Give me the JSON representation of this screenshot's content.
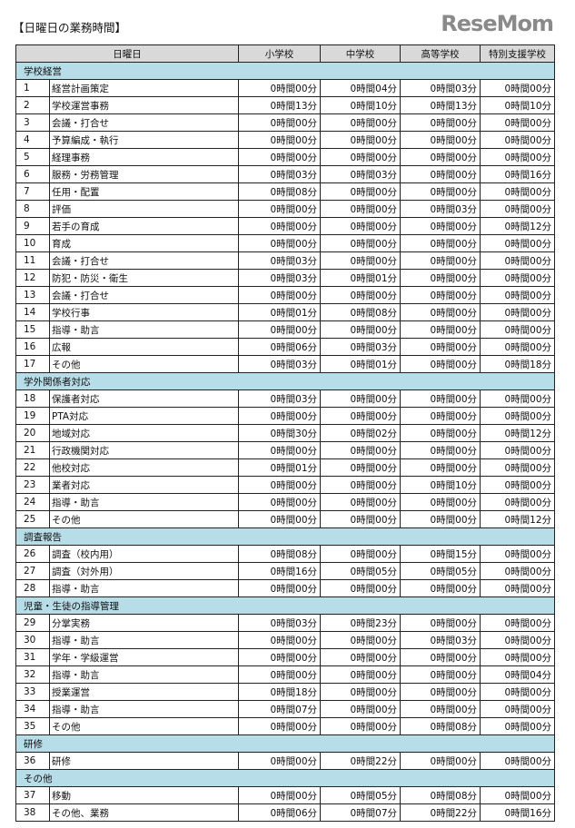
{
  "title": "【日曜日の業務時間】",
  "header": {
    "item": "日曜日",
    "columns": [
      "小学校",
      "中学校",
      "高等学校",
      "特別支援学校"
    ]
  },
  "sections": [
    {
      "name": "学校経営",
      "rows": [
        {
          "no": "1",
          "label": "経営計画策定",
          "values": [
            "0時間00分",
            "0時間04分",
            "0時間03分",
            "0時間00分"
          ]
        },
        {
          "no": "2",
          "label": "学校運営事務",
          "values": [
            "0時間13分",
            "0時間10分",
            "0時間13分",
            "0時間10分"
          ]
        },
        {
          "no": "3",
          "label": "会議・打合せ",
          "values": [
            "0時間00分",
            "0時間00分",
            "0時間00分",
            "0時間00分"
          ]
        },
        {
          "no": "4",
          "label": "予算編成・執行",
          "values": [
            "0時間00分",
            "0時間00分",
            "0時間00分",
            "0時間00分"
          ]
        },
        {
          "no": "5",
          "label": "経理事務",
          "values": [
            "0時間00分",
            "0時間00分",
            "0時間00分",
            "0時間00分"
          ]
        },
        {
          "no": "6",
          "label": "服務・労務管理",
          "values": [
            "0時間03分",
            "0時間03分",
            "0時間00分",
            "0時間16分"
          ]
        },
        {
          "no": "7",
          "label": "任用・配置",
          "values": [
            "0時間08分",
            "0時間00分",
            "0時間00分",
            "0時間00分"
          ]
        },
        {
          "no": "8",
          "label": "評価",
          "values": [
            "0時間00分",
            "0時間00分",
            "0時間03分",
            "0時間00分"
          ]
        },
        {
          "no": "9",
          "label": "若手の育成",
          "values": [
            "0時間00分",
            "0時間00分",
            "0時間00分",
            "0時間12分"
          ]
        },
        {
          "no": "10",
          "label": "育成",
          "values": [
            "0時間00分",
            "0時間00分",
            "0時間00分",
            "0時間00分"
          ]
        },
        {
          "no": "11",
          "label": "会議・打合せ",
          "values": [
            "0時間03分",
            "0時間00分",
            "0時間00分",
            "0時間00分"
          ]
        },
        {
          "no": "12",
          "label": "防犯・防災・衛生",
          "values": [
            "0時間03分",
            "0時間01分",
            "0時間00分",
            "0時間00分"
          ]
        },
        {
          "no": "13",
          "label": "会議・打合せ",
          "values": [
            "0時間00分",
            "0時間00分",
            "0時間00分",
            "0時間00分"
          ]
        },
        {
          "no": "14",
          "label": "学校行事",
          "values": [
            "0時間01分",
            "0時間08分",
            "0時間00分",
            "0時間00分"
          ]
        },
        {
          "no": "15",
          "label": "指導・助言",
          "values": [
            "0時間00分",
            "0時間00分",
            "0時間00分",
            "0時間00分"
          ]
        },
        {
          "no": "16",
          "label": "広報",
          "values": [
            "0時間06分",
            "0時間03分",
            "0時間00分",
            "0時間00分"
          ]
        },
        {
          "no": "17",
          "label": "その他",
          "values": [
            "0時間03分",
            "0時間01分",
            "0時間00分",
            "0時間18分"
          ]
        }
      ]
    },
    {
      "name": "学外関係者対応",
      "rows": [
        {
          "no": "18",
          "label": "保護者対応",
          "values": [
            "0時間03分",
            "0時間00分",
            "0時間00分",
            "0時間00分"
          ]
        },
        {
          "no": "19",
          "label": "PTA対応",
          "values": [
            "0時間00分",
            "0時間00分",
            "0時間00分",
            "0時間00分"
          ]
        },
        {
          "no": "20",
          "label": "地域対応",
          "values": [
            "0時間30分",
            "0時間02分",
            "0時間00分",
            "0時間12分"
          ]
        },
        {
          "no": "21",
          "label": "行政機関対応",
          "values": [
            "0時間00分",
            "0時間00分",
            "0時間00分",
            "0時間00分"
          ]
        },
        {
          "no": "22",
          "label": "他校対応",
          "values": [
            "0時間01分",
            "0時間00分",
            "0時間00分",
            "0時間00分"
          ]
        },
        {
          "no": "23",
          "label": "業者対応",
          "values": [
            "0時間00分",
            "0時間00分",
            "0時間10分",
            "0時間00分"
          ]
        },
        {
          "no": "24",
          "label": "指導・助言",
          "values": [
            "0時間00分",
            "0時間00分",
            "0時間00分",
            "0時間00分"
          ]
        },
        {
          "no": "25",
          "label": "その他",
          "values": [
            "0時間00分",
            "0時間00分",
            "0時間00分",
            "0時間12分"
          ]
        }
      ]
    },
    {
      "name": "調査報告",
      "rows": [
        {
          "no": "26",
          "label": "調査（校内用）",
          "values": [
            "0時間08分",
            "0時間00分",
            "0時間15分",
            "0時間00分"
          ]
        },
        {
          "no": "27",
          "label": "調査（対外用）",
          "values": [
            "0時間16分",
            "0時間05分",
            "0時間05分",
            "0時間00分"
          ]
        },
        {
          "no": "28",
          "label": "指導・助言",
          "values": [
            "0時間00分",
            "0時間00分",
            "0時間00分",
            "0時間00分"
          ]
        }
      ]
    },
    {
      "name": "児童・生徒の指導管理",
      "rows": [
        {
          "no": "29",
          "label": "分掌実務",
          "values": [
            "0時間03分",
            "0時間23分",
            "0時間00分",
            "0時間00分"
          ]
        },
        {
          "no": "30",
          "label": "指導・助言",
          "values": [
            "0時間00分",
            "0時間00分",
            "0時間03分",
            "0時間00分"
          ]
        },
        {
          "no": "31",
          "label": "学年・学級運営",
          "values": [
            "0時間00分",
            "0時間00分",
            "0時間00分",
            "0時間00分"
          ]
        },
        {
          "no": "32",
          "label": "指導・助言",
          "values": [
            "0時間00分",
            "0時間00分",
            "0時間00分",
            "0時間04分"
          ]
        },
        {
          "no": "33",
          "label": "授業運営",
          "values": [
            "0時間18分",
            "0時間00分",
            "0時間00分",
            "0時間00分"
          ]
        },
        {
          "no": "34",
          "label": "指導・助言",
          "values": [
            "0時間07分",
            "0時間00分",
            "0時間00分",
            "0時間00分"
          ]
        },
        {
          "no": "35",
          "label": "その他",
          "values": [
            "0時間00分",
            "0時間00分",
            "0時間08分",
            "0時間00分"
          ]
        }
      ]
    },
    {
      "name": "研修",
      "rows": [
        {
          "no": "36",
          "label": "研修",
          "values": [
            "0時間00分",
            "0時間22分",
            "0時間00分",
            "0時間00分"
          ]
        }
      ]
    },
    {
      "name": "その他",
      "rows": [
        {
          "no": "37",
          "label": "移動",
          "values": [
            "0時間00分",
            "0時間05分",
            "0時間08分",
            "0時間00分"
          ]
        },
        {
          "no": "38",
          "label": "その他、業務",
          "values": [
            "0時間06分",
            "0時間07分",
            "0時間22分",
            "0時間16分"
          ]
        }
      ]
    }
  ],
  "watermark": "ReseMom",
  "colors": {
    "header_bg": "#d9d9d9",
    "section_bg": "#b7dde8"
  }
}
